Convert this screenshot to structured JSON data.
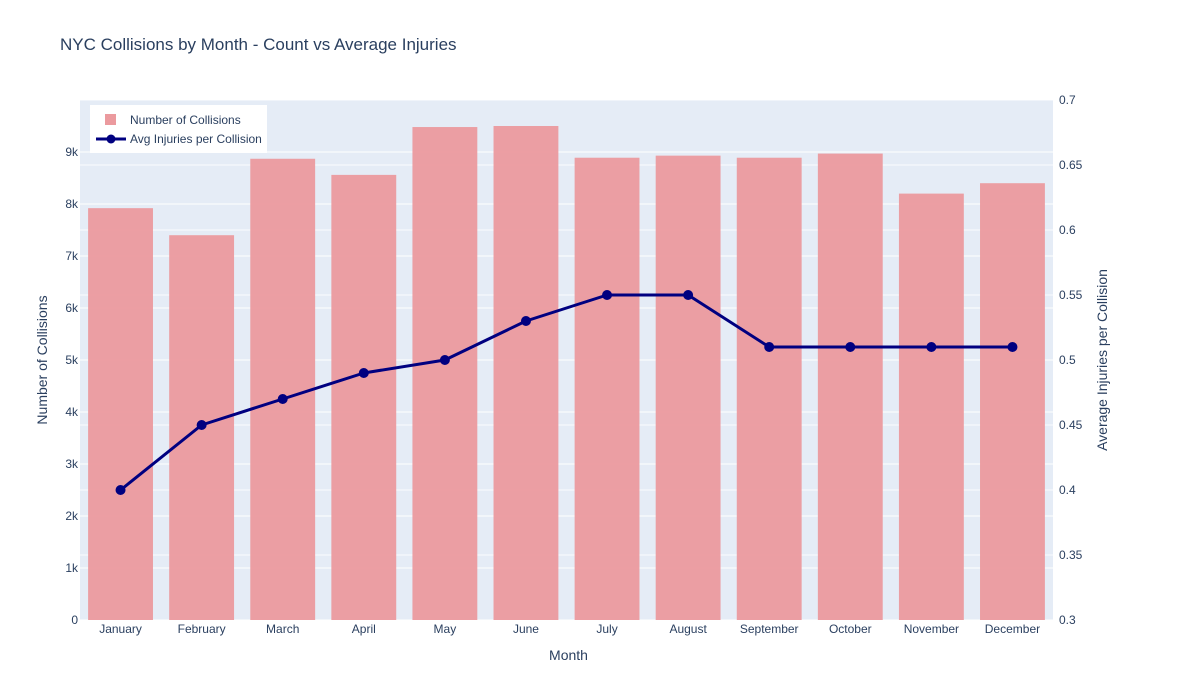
{
  "chart_data": {
    "type": "bar",
    "title": "NYC Collisions by Month - Count vs Average Injuries",
    "xlabel": "Month",
    "ylabel": "Number of Collisions",
    "y2label": "Average Injuries per Collision",
    "categories": [
      "January",
      "February",
      "March",
      "April",
      "May",
      "June",
      "July",
      "August",
      "September",
      "October",
      "November",
      "December"
    ],
    "ylim": [
      0,
      10000
    ],
    "y_ticks": [
      0,
      1000,
      2000,
      3000,
      4000,
      5000,
      6000,
      7000,
      8000,
      9000
    ],
    "y_tick_labels": [
      "0",
      "1k",
      "2k",
      "3k",
      "4k",
      "5k",
      "6k",
      "7k",
      "8k",
      "9k"
    ],
    "y2lim": [
      0.3,
      0.7
    ],
    "y2_ticks": [
      0.3,
      0.35,
      0.4,
      0.45,
      0.5,
      0.55,
      0.6,
      0.65,
      0.7
    ],
    "y2_tick_labels": [
      "0.3",
      "0.35",
      "0.4",
      "0.45",
      "0.5",
      "0.55",
      "0.6",
      "0.65",
      "0.7"
    ],
    "grid": true,
    "legend_position": "top-left",
    "series": [
      {
        "name": "Number of Collisions",
        "type": "bar",
        "axis": "left",
        "color": "#eb9a9e",
        "values": [
          7920,
          7400,
          8870,
          8560,
          9480,
          9500,
          8890,
          8930,
          8890,
          8970,
          8200,
          8400
        ]
      },
      {
        "name": "Avg Injuries per Collision",
        "type": "line",
        "axis": "right",
        "color": "#000080",
        "values": [
          0.4,
          0.45,
          0.47,
          0.49,
          0.5,
          0.53,
          0.55,
          0.55,
          0.51,
          0.51,
          0.51,
          0.51
        ]
      }
    ],
    "colors": {
      "plot_background": "#e5ecf6",
      "grid": "#ffffff",
      "text": "#2a3f5f",
      "tick_text": "#2a3f5f"
    }
  }
}
